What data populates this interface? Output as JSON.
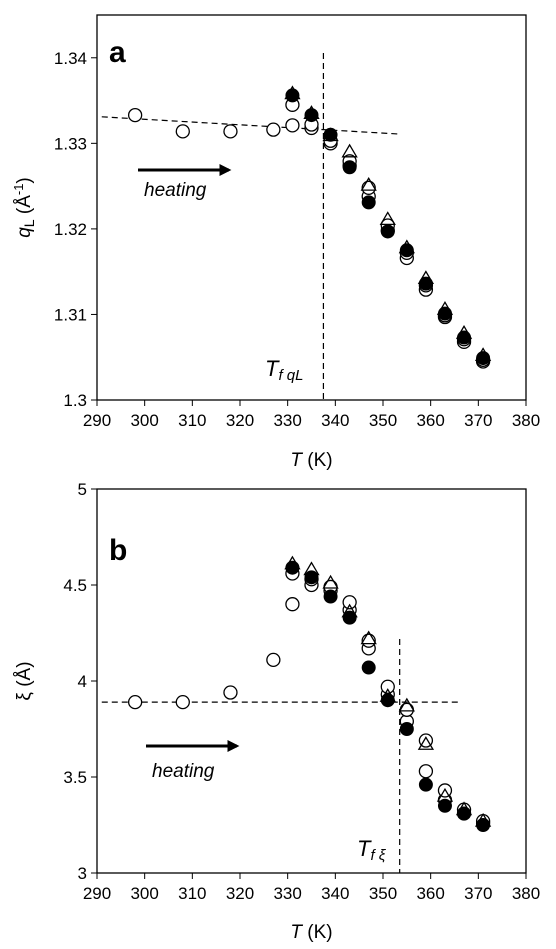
{
  "chart_data": [
    {
      "type": "scatter",
      "panel": "a",
      "xlabel": "T (K)",
      "ylabel": "qL (Å-1)",
      "ylabel_parts": {
        "symbol": "q",
        "sub": "L",
        "unit_open": " (Å",
        "sup": "-1",
        "unit_close": ")"
      },
      "xlabel_parts": {
        "symbol": "T",
        "unit": " (K)"
      },
      "xlim": [
        290,
        380
      ],
      "ylim": [
        1.3,
        1.345
      ],
      "xticks": [
        290,
        300,
        310,
        320,
        330,
        340,
        350,
        360,
        370,
        380
      ],
      "yticks": [
        1.3,
        1.31,
        1.32,
        1.33,
        1.34
      ],
      "ytick_labels": [
        "1.3",
        "1.31",
        "1.32",
        "1.33",
        "1.34"
      ],
      "annotation": "heating",
      "transition_label": {
        "main": "T",
        "sub": "f qL"
      },
      "transition_x": 337.5,
      "guide_line": {
        "x": [
          291,
          353
        ],
        "y": [
          1.3331,
          1.3311
        ]
      },
      "series": [
        {
          "marker": "open-circle",
          "x": [
            298,
            308,
            318,
            327,
            331,
            335,
            339,
            343,
            347,
            351,
            355,
            359,
            363,
            367,
            371
          ],
          "y": [
            1.3333,
            1.3314,
            1.3314,
            1.3316,
            1.3321,
            1.3318,
            1.33,
            1.3274,
            1.3238,
            1.3198,
            1.3166,
            1.3129,
            1.3097,
            1.3068,
            1.3045
          ]
        },
        {
          "marker": "open-circle",
          "x": [
            331,
            335,
            339,
            343,
            347,
            351,
            355,
            359,
            363,
            367,
            371
          ],
          "y": [
            1.3345,
            1.3322,
            1.3303,
            1.3279,
            1.3248,
            1.3204,
            1.3172,
            1.3134,
            1.3099,
            1.3071,
            1.3047
          ]
        },
        {
          "marker": "open-triangle",
          "x": [
            331,
            335,
            339,
            343,
            347,
            351,
            355,
            359,
            363,
            367,
            371
          ],
          "y": [
            1.3358,
            1.3335,
            1.3309,
            1.329,
            1.3251,
            1.3211,
            1.3178,
            1.3142,
            1.3106,
            1.3078,
            1.3052
          ]
        },
        {
          "marker": "filled-circle",
          "x": [
            331,
            335,
            339,
            343,
            347,
            351,
            355,
            359,
            363,
            367,
            371
          ],
          "y": [
            1.3356,
            1.3333,
            1.331,
            1.3272,
            1.3231,
            1.3197,
            1.3175,
            1.3136,
            1.3101,
            1.3073,
            1.3049
          ]
        }
      ]
    },
    {
      "type": "scatter",
      "panel": "b",
      "xlabel": "T (K)",
      "ylabel": "ξ (Å)",
      "ylabel_parts": {
        "symbol": "ξ",
        "unit": " (Å)"
      },
      "xlabel_parts": {
        "symbol": "T",
        "unit": " (K)"
      },
      "xlim": [
        290,
        380
      ],
      "ylim": [
        3,
        5
      ],
      "xticks": [
        290,
        300,
        310,
        320,
        330,
        340,
        350,
        360,
        370,
        380
      ],
      "yticks": [
        3,
        3.5,
        4,
        4.5,
        5
      ],
      "ytick_labels": [
        "3",
        "3.5",
        "4",
        "4.5",
        "5"
      ],
      "annotation": "heating",
      "transition_label": {
        "main": "T",
        "sub": "f ξ"
      },
      "transition_x": 353.5,
      "guide_line": {
        "x": [
          291,
          366
        ],
        "y": [
          3.89,
          3.89
        ]
      },
      "series": [
        {
          "marker": "open-circle",
          "x": [
            298,
            308,
            318,
            327,
            331,
            335,
            339,
            343,
            347,
            351,
            355,
            359,
            363,
            367,
            371
          ],
          "y": [
            3.89,
            3.89,
            3.94,
            4.11,
            4.4,
            4.5,
            4.47,
            4.37,
            4.17,
            3.93,
            3.79,
            3.53,
            3.38,
            3.31,
            3.26
          ]
        },
        {
          "marker": "open-circle",
          "x": [
            331,
            335,
            339,
            343,
            347,
            351,
            355,
            359,
            363,
            367,
            371
          ],
          "y": [
            4.56,
            4.53,
            4.49,
            4.41,
            4.21,
            3.97,
            3.85,
            3.69,
            3.43,
            3.33,
            3.27
          ]
        },
        {
          "marker": "open-triangle",
          "x": [
            331,
            335,
            339,
            343,
            347,
            351,
            355,
            359,
            363,
            367,
            371
          ],
          "y": [
            4.61,
            4.58,
            4.51,
            4.36,
            4.22,
            3.92,
            3.87,
            3.67,
            3.4,
            3.33,
            3.27
          ]
        },
        {
          "marker": "filled-circle",
          "x": [
            331,
            335,
            339,
            343,
            347,
            351,
            355,
            359,
            363,
            367,
            371
          ],
          "y": [
            4.59,
            4.54,
            4.44,
            4.33,
            4.07,
            3.9,
            3.75,
            3.46,
            3.35,
            3.31,
            3.25
          ]
        }
      ]
    }
  ]
}
